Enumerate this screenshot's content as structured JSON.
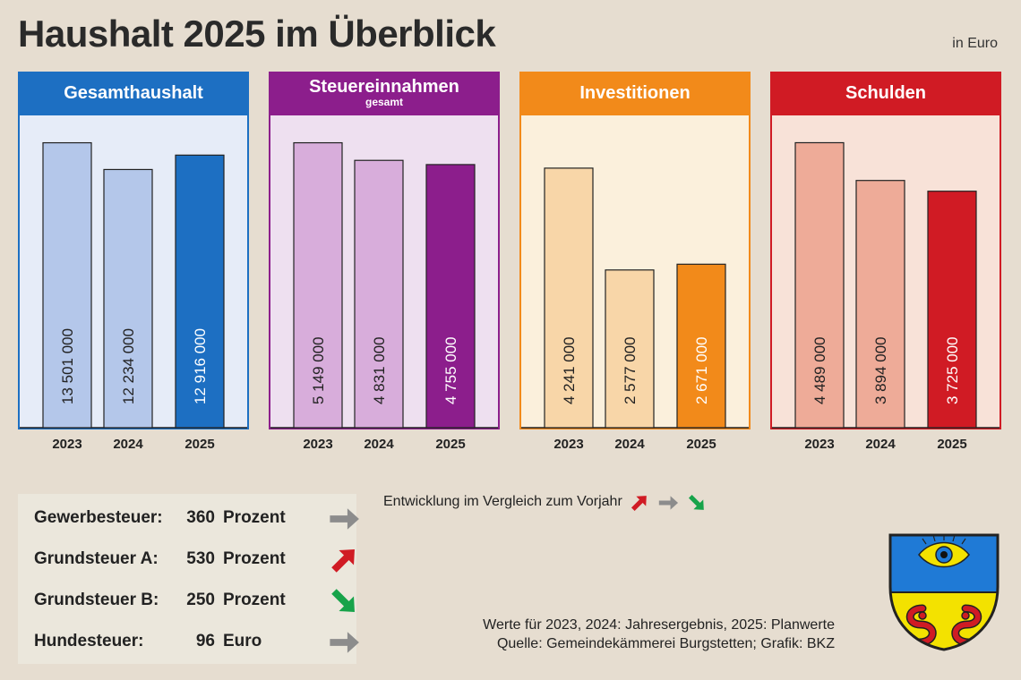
{
  "title": "Haushalt 2025 im Überblick",
  "unit_note": "in Euro",
  "years": [
    "2023",
    "2024",
    "2025"
  ],
  "chart_data": [
    {
      "type": "bar",
      "title": "Gesamthaushalt",
      "subtitle": "",
      "categories": [
        "2023",
        "2024",
        "2025"
      ],
      "values": [
        13501000,
        12234000,
        12916000
      ],
      "value_labels": [
        "13 501 000",
        "12 234 000",
        "12 916 000"
      ],
      "ylim": [
        0,
        14500000
      ],
      "colors": {
        "header": "#1d6fc2",
        "bg": "#e6ecf8",
        "bar": "#b4c7ea",
        "highlight": "#1d6fc2",
        "border": "#1d6fc2"
      }
    },
    {
      "type": "bar",
      "title": "Steuereinnahmen",
      "subtitle": "gesamt",
      "categories": [
        "2023",
        "2024",
        "2025"
      ],
      "values": [
        5149000,
        4831000,
        4755000
      ],
      "value_labels": [
        "5 149 000",
        "4 831 000",
        "4 755 000"
      ],
      "ylim": [
        0,
        5530000
      ],
      "colors": {
        "header": "#8c1e8c",
        "bg": "#eee0f0",
        "bar": "#d8addb",
        "highlight": "#8c1e8c",
        "border": "#8c1e8c"
      }
    },
    {
      "type": "bar",
      "title": "Investitionen",
      "subtitle": "",
      "categories": [
        "2023",
        "2024",
        "2025"
      ],
      "values": [
        4241000,
        2577000,
        2671000
      ],
      "value_labels": [
        "4 241 000",
        "2 577 000",
        "2 671 000"
      ],
      "ylim": [
        0,
        5000000
      ],
      "colors": {
        "header": "#f28a1a",
        "bg": "#fbf0dc",
        "bar": "#f8d6a8",
        "highlight": "#f28a1a",
        "border": "#f28a1a"
      }
    },
    {
      "type": "bar",
      "title": "Schulden",
      "subtitle": "",
      "categories": [
        "2023",
        "2024",
        "2025"
      ],
      "values": [
        4489000,
        3894000,
        3725000
      ],
      "value_labels": [
        "4 489 000",
        "3 894 000",
        "3 725 000"
      ],
      "ylim": [
        0,
        4820000
      ],
      "colors": {
        "header": "#d01b24",
        "bg": "#f8e2d8",
        "bar": "#eeab98",
        "highlight": "#d01b24",
        "border": "#d01b24"
      }
    }
  ],
  "taxes": [
    {
      "name": "Gewerbesteuer:",
      "value": "360",
      "unit": "Prozent",
      "trend": "same"
    },
    {
      "name": "Grundsteuer A:",
      "value": "530",
      "unit": "Prozent",
      "trend": "up"
    },
    {
      "name": "Grundsteuer B:",
      "value": "250",
      "unit": "Prozent",
      "trend": "down"
    },
    {
      "name": "Hundesteuer:",
      "value": "96",
      "unit": "Euro",
      "trend": "same"
    }
  ],
  "trend_colors": {
    "up": "#d01b24",
    "same": "#8c8c8c",
    "down": "#17a34a"
  },
  "legend_text": "Entwicklung im Vergleich zum Vorjahr",
  "footnote_line1": "Werte für 2023, 2024: Jahresergebnis, 2025: Planwerte",
  "footnote_line2": "Quelle: Gemeindekämmerei Burgstetten; Grafik: BKZ"
}
